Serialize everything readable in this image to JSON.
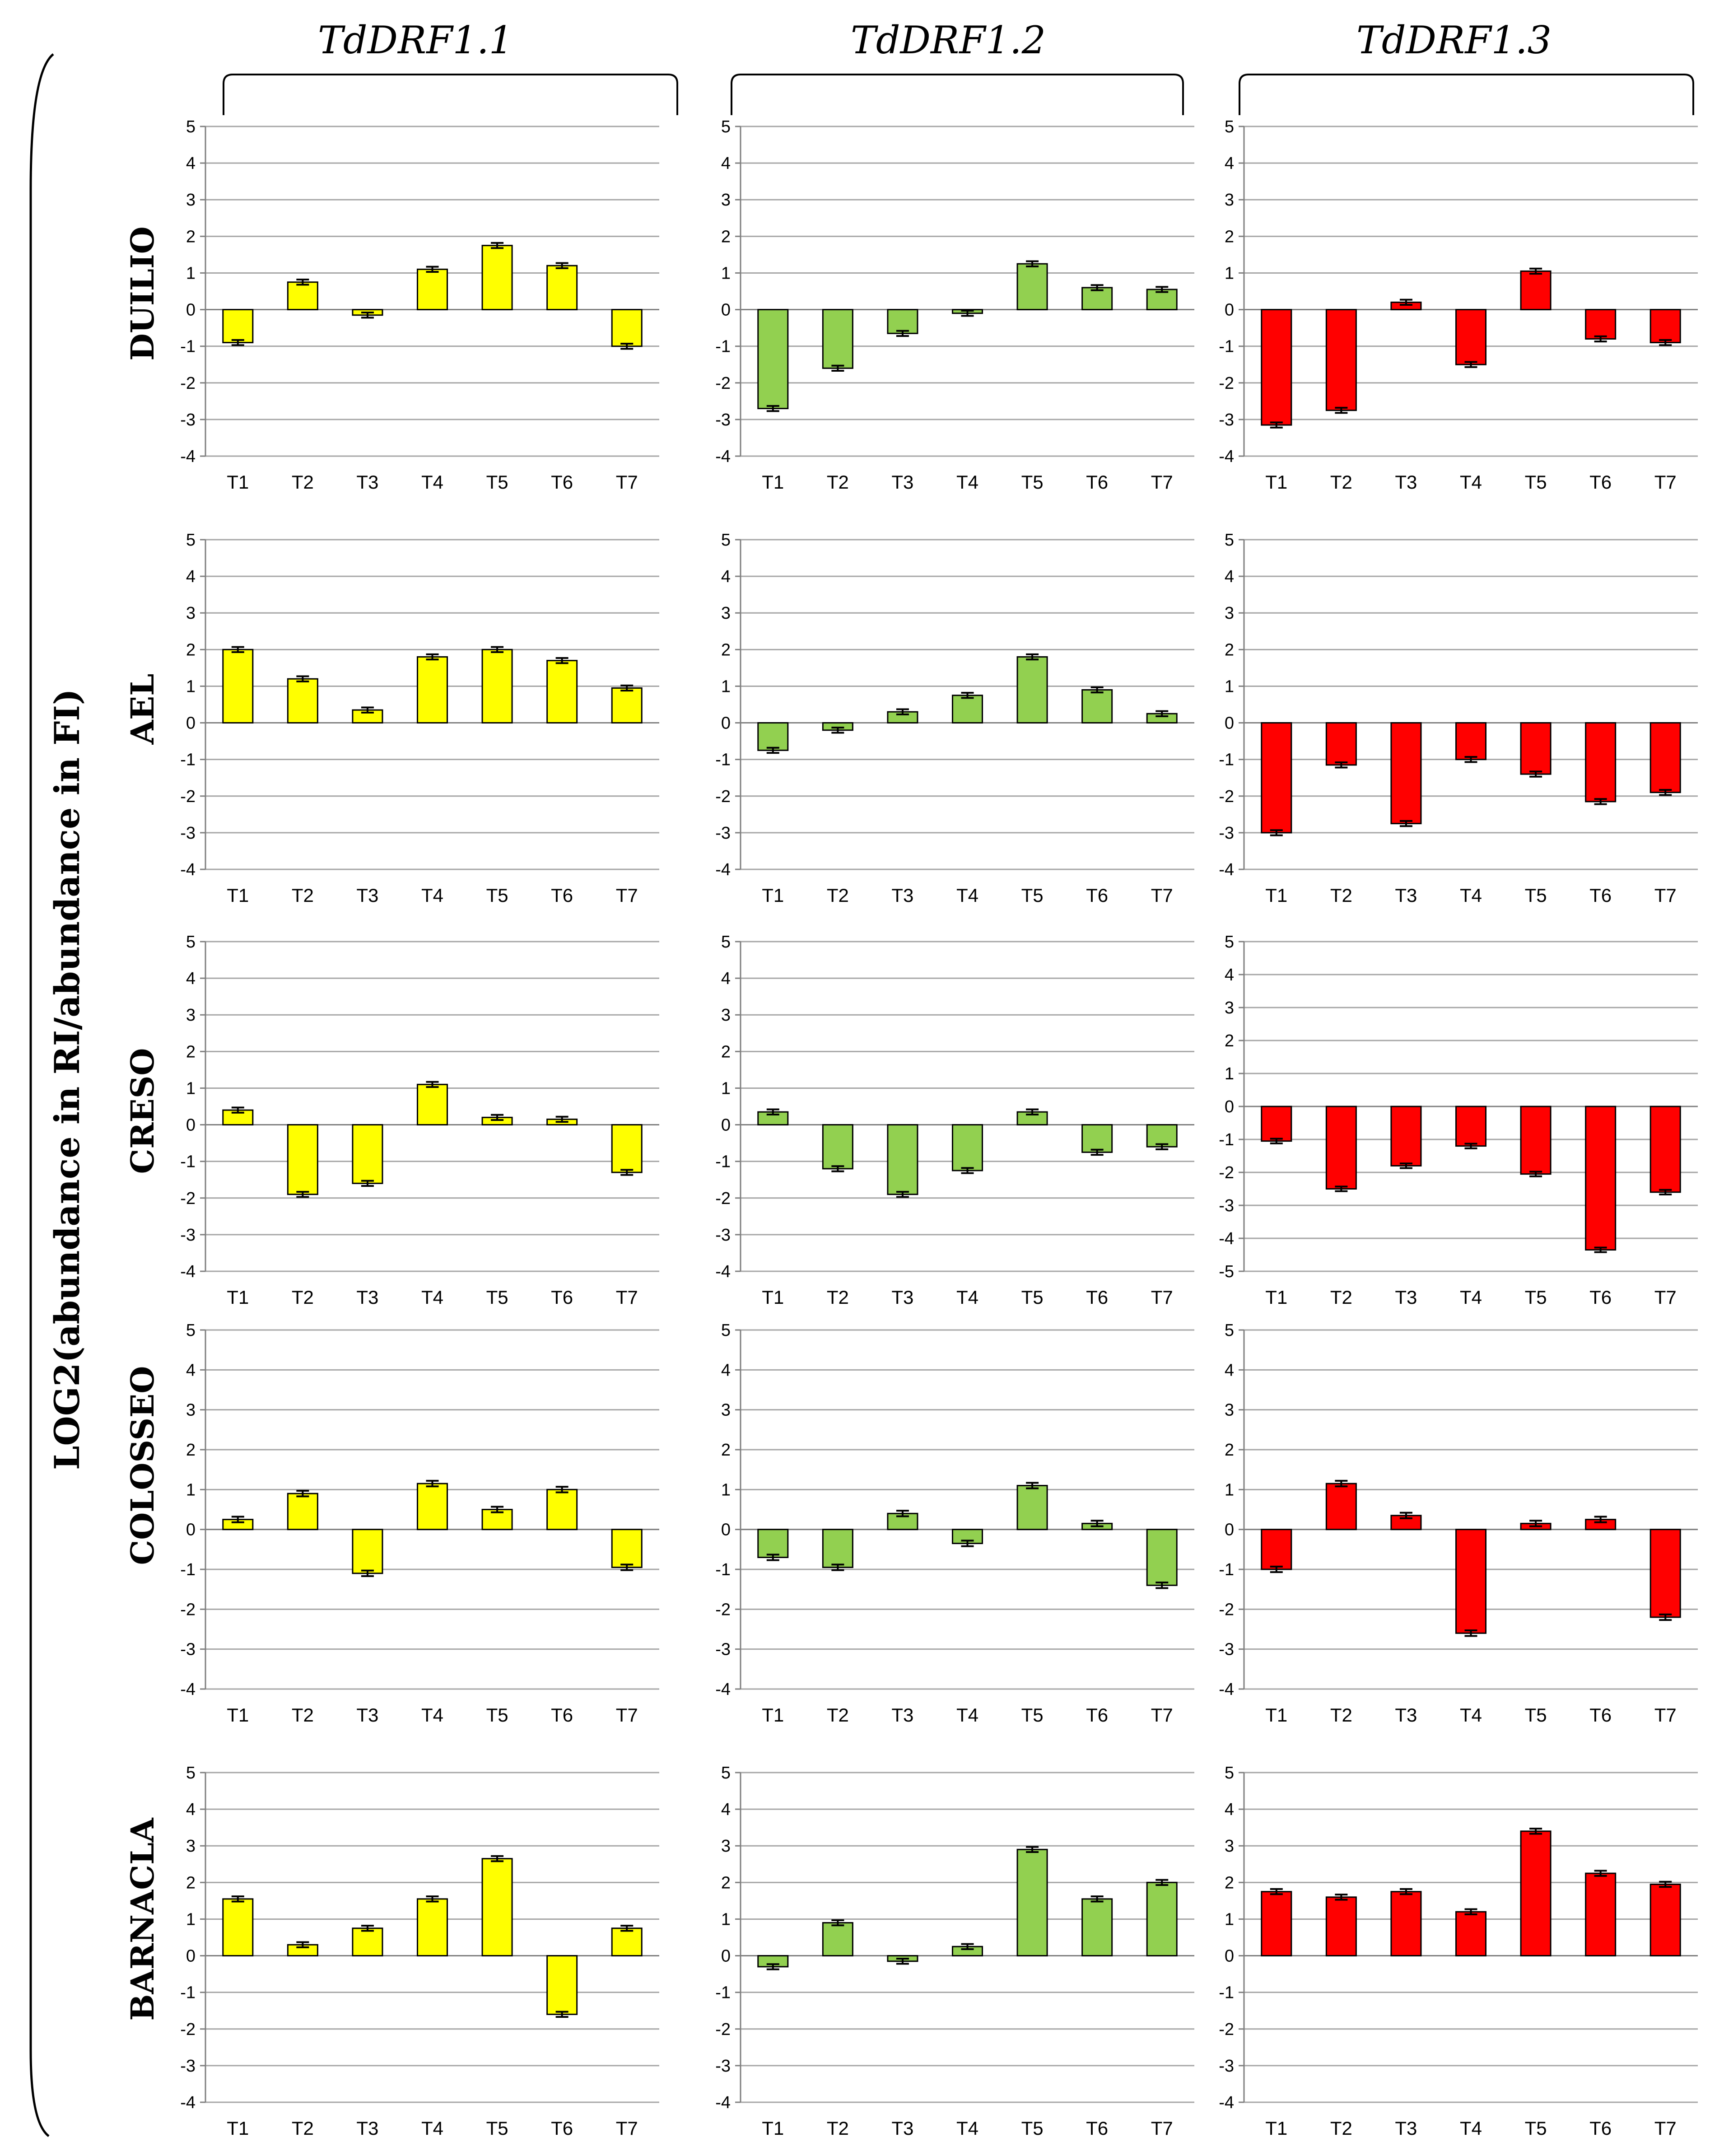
{
  "figure": {
    "y_axis_label": "LOG2(abundance in RI/abundance in FI)",
    "columns": [
      "TdDRF1.1",
      "TdDRF1.2",
      "TdDRF1.3"
    ],
    "rows": [
      "DUILIO",
      "AEL",
      "CRESO",
      "COLOSSEO",
      "BARNACLA"
    ],
    "colors": {
      "TdDRF1.1": "#ffff00",
      "TdDRF1.2": "#92d050",
      "TdDRF1.3": "#ff0000"
    }
  },
  "chart_data": [
    {
      "type": "bar",
      "row": "DUILIO",
      "column": "TdDRF1.1",
      "categories": [
        "T1",
        "T2",
        "T3",
        "T4",
        "T5",
        "T6",
        "T7"
      ],
      "values": [
        -0.9,
        0.75,
        -0.15,
        1.1,
        1.75,
        1.2,
        -1.0
      ],
      "ylim": [
        -4,
        5
      ]
    },
    {
      "type": "bar",
      "row": "DUILIO",
      "column": "TdDRF1.2",
      "categories": [
        "T1",
        "T2",
        "T3",
        "T4",
        "T5",
        "T6",
        "T7"
      ],
      "values": [
        -2.7,
        -1.6,
        -0.65,
        -0.1,
        1.25,
        0.6,
        0.55
      ],
      "ylim": [
        -4,
        5
      ]
    },
    {
      "type": "bar",
      "row": "DUILIO",
      "column": "TdDRF1.3",
      "categories": [
        "T1",
        "T2",
        "T3",
        "T4",
        "T5",
        "T6",
        "T7"
      ],
      "values": [
        -3.15,
        -2.75,
        0.2,
        -1.5,
        1.05,
        -0.8,
        -0.9
      ],
      "ylim": [
        -4,
        5
      ]
    },
    {
      "type": "bar",
      "row": "AEL",
      "column": "TdDRF1.1",
      "categories": [
        "T1",
        "T2",
        "T3",
        "T4",
        "T5",
        "T6",
        "T7"
      ],
      "values": [
        2.0,
        1.2,
        0.35,
        1.8,
        2.0,
        1.7,
        0.95
      ],
      "ylim": [
        -4,
        5
      ]
    },
    {
      "type": "bar",
      "row": "AEL",
      "column": "TdDRF1.2",
      "categories": [
        "T1",
        "T2",
        "T3",
        "T4",
        "T5",
        "T6",
        "T7"
      ],
      "values": [
        -0.75,
        -0.2,
        0.3,
        0.75,
        1.8,
        0.9,
        0.25
      ],
      "ylim": [
        -4,
        5
      ]
    },
    {
      "type": "bar",
      "row": "AEL",
      "column": "TdDRF1.3",
      "categories": [
        "T1",
        "T2",
        "T3",
        "T4",
        "T5",
        "T6",
        "T7"
      ],
      "values": [
        -3.0,
        -1.15,
        -2.75,
        -1.0,
        -1.4,
        -2.15,
        -1.9
      ],
      "ylim": [
        -4,
        5
      ]
    },
    {
      "type": "bar",
      "row": "CRESO",
      "column": "TdDRF1.1",
      "categories": [
        "T1",
        "T2",
        "T3",
        "T4",
        "T5",
        "T6",
        "T7"
      ],
      "values": [
        0.4,
        -1.9,
        -1.6,
        1.1,
        0.2,
        0.15,
        -1.3
      ],
      "ylim": [
        -4,
        5
      ]
    },
    {
      "type": "bar",
      "row": "CRESO",
      "column": "TdDRF1.2",
      "categories": [
        "T1",
        "T2",
        "T3",
        "T4",
        "T5",
        "T6",
        "T7"
      ],
      "values": [
        0.35,
        -1.2,
        -1.9,
        -1.25,
        0.35,
        -0.75,
        -0.6
      ],
      "ylim": [
        -4,
        5
      ]
    },
    {
      "type": "bar",
      "row": "CRESO",
      "column": "TdDRF1.3",
      "categories": [
        "T1",
        "T2",
        "T3",
        "T4",
        "T5",
        "T6",
        "T7"
      ],
      "values": [
        -1.05,
        -2.5,
        -1.8,
        -1.2,
        -2.05,
        -4.35,
        -2.6
      ],
      "ylim": [
        -5,
        5
      ]
    },
    {
      "type": "bar",
      "row": "COLOSSEO",
      "column": "TdDRF1.1",
      "categories": [
        "T1",
        "T2",
        "T3",
        "T4",
        "T5",
        "T6",
        "T7"
      ],
      "values": [
        0.25,
        0.9,
        -1.1,
        1.15,
        0.5,
        1.0,
        -0.95
      ],
      "ylim": [
        -4,
        5
      ]
    },
    {
      "type": "bar",
      "row": "COLOSSEO",
      "column": "TdDRF1.2",
      "categories": [
        "T1",
        "T2",
        "T3",
        "T4",
        "T5",
        "T6",
        "T7"
      ],
      "values": [
        -0.7,
        -0.95,
        0.4,
        -0.35,
        1.1,
        0.15,
        -1.4
      ],
      "ylim": [
        -4,
        5
      ]
    },
    {
      "type": "bar",
      "row": "COLOSSEO",
      "column": "TdDRF1.3",
      "categories": [
        "T1",
        "T2",
        "T3",
        "T4",
        "T5",
        "T6",
        "T7"
      ],
      "values": [
        -1.0,
        1.15,
        0.35,
        -2.6,
        0.15,
        0.25,
        -2.2
      ],
      "ylim": [
        -4,
        5
      ]
    },
    {
      "type": "bar",
      "row": "BARNACLA",
      "column": "TdDRF1.1",
      "categories": [
        "T1",
        "T2",
        "T3",
        "T4",
        "T5",
        "T6",
        "T7"
      ],
      "values": [
        1.55,
        0.3,
        0.75,
        1.55,
        2.65,
        -1.6,
        0.75
      ],
      "ylim": [
        -4,
        5
      ]
    },
    {
      "type": "bar",
      "row": "BARNACLA",
      "column": "TdDRF1.2",
      "categories": [
        "T1",
        "T2",
        "T3",
        "T4",
        "T5",
        "T6",
        "T7"
      ],
      "values": [
        -0.3,
        0.9,
        -0.15,
        0.25,
        2.9,
        1.55,
        2.0
      ],
      "ylim": [
        -4,
        5
      ]
    },
    {
      "type": "bar",
      "row": "BARNACLA",
      "column": "TdDRF1.3",
      "categories": [
        "T1",
        "T2",
        "T3",
        "T4",
        "T5",
        "T6",
        "T7"
      ],
      "values": [
        1.75,
        1.6,
        1.75,
        1.2,
        3.4,
        2.25,
        1.95
      ],
      "ylim": [
        -4,
        5
      ]
    }
  ]
}
